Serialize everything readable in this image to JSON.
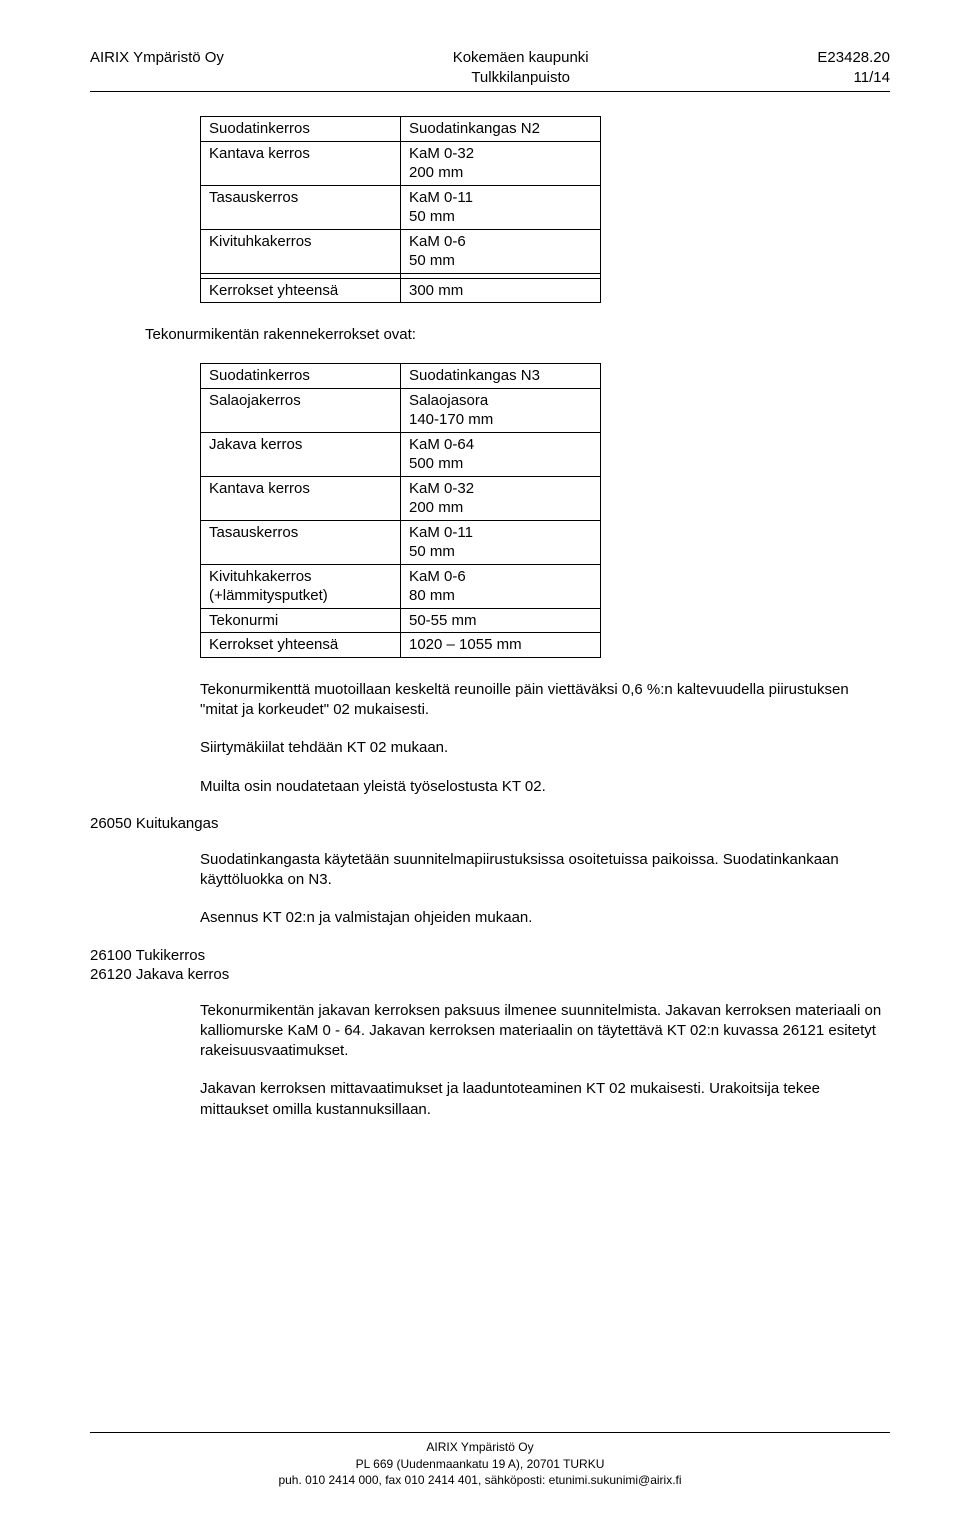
{
  "header": {
    "left": "AIRIX Ympäristö Oy",
    "center_line1": "Kokemäen kaupunki",
    "center_line2": "Tulkkilanpuisto",
    "right_line1": "E23428.20",
    "right_line2": "11/14"
  },
  "table1": {
    "rows": [
      {
        "c1": "Suodatinkerros",
        "c2": "Suodatinkangas N2"
      },
      {
        "c1": "Kantava kerros",
        "c2": "KaM 0-32\n200 mm"
      },
      {
        "c1": "Tasauskerros",
        "c2": "KaM 0-11\n50 mm"
      },
      {
        "c1": "Kivituhkakerros",
        "c2": "KaM 0-6\n50 mm"
      },
      {
        "c1": "",
        "c2": ""
      },
      {
        "c1": "Kerrokset yhteensä",
        "c2": "300 mm"
      }
    ]
  },
  "mid_text": "Tekonurmikentän rakennekerrokset ovat:",
  "table2": {
    "rows": [
      {
        "c1": "Suodatinkerros",
        "c2": "Suodatinkangas N3"
      },
      {
        "c1": "Salaojakerros",
        "c2": "Salaojasora\n140-170 mm"
      },
      {
        "c1": "Jakava kerros",
        "c2": "KaM 0-64\n500 mm"
      },
      {
        "c1": "Kantava kerros",
        "c2": "KaM 0-32\n200 mm"
      },
      {
        "c1": "Tasauskerros",
        "c2": "KaM 0-11\n50 mm"
      },
      {
        "c1": "Kivituhkakerros\n(+lämmitysputket)",
        "c2": "KaM 0-6\n80 mm"
      },
      {
        "c1": "Tekonurmi",
        "c2": "50-55 mm"
      },
      {
        "c1": "Kerrokset yhteensä",
        "c2": "1020 – 1055 mm"
      }
    ]
  },
  "body": {
    "p1": "Tekonurmikenttä muotoillaan keskeltä reunoille päin viettäväksi 0,6 %:n kaltevuudella piirustuksen \"mitat ja korkeudet\" 02 mukaisesti.",
    "p2": "Siirtymäkiilat tehdään KT 02 mukaan.",
    "p3": "Muilta osin noudatetaan yleistä työselostusta KT 02.",
    "h1": "26050 Kuitukangas",
    "p4": "Suodatinkangasta käytetään suunnitelmapiirustuksissa osoitetuissa paikoissa. Suodatinkankaan käyttöluokka on N3.",
    "p5": "Asennus KT 02:n ja valmistajan ohjeiden mukaan.",
    "h2a": "26100 Tukikerros",
    "h2b": "26120 Jakava kerros",
    "p6": "Tekonurmikentän jakavan kerroksen paksuus ilmenee suunnitelmista. Jakavan kerroksen materiaali on kalliomurske KaM 0 - 64. Jakavan kerroksen materiaalin on täytettävä KT 02:n kuvassa 26121 esitetyt rakeisuusvaatimukset.",
    "p7": "Jakavan kerroksen mittavaatimukset ja laaduntoteaminen KT 02 mukaisesti. Urakoitsija tekee mittaukset omilla kustannuksillaan."
  },
  "footer": {
    "l1": "AIRIX Ympäristö Oy",
    "l2": "PL 669 (Uudenmaankatu 19 A), 20701 TURKU",
    "l3": "puh. 010 2414 000, fax 010 2414 401, sähköposti: etunimi.sukunimi@airix.fi"
  }
}
